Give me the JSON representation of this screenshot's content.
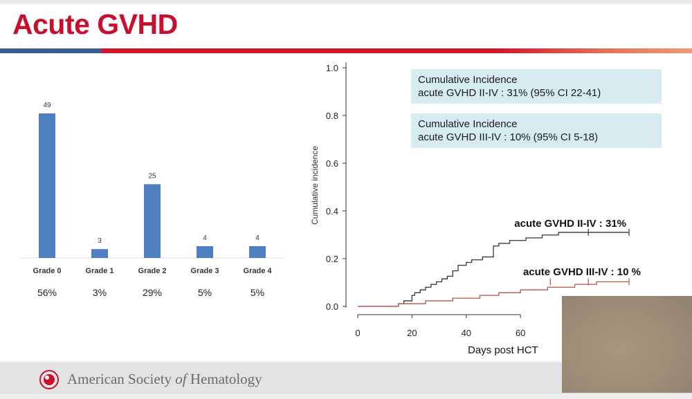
{
  "slide": {
    "title": "Acute GVHD"
  },
  "footer": {
    "org_prefix": "American Society ",
    "org_italic": "of",
    "org_suffix": " Hematology"
  },
  "annotations": {
    "box1": {
      "line1": "Cumulative Incidence",
      "line2": "acute GVHD II-IV : 31% (95% CI 22-41)"
    },
    "box2": {
      "line1": "Cumulative Incidence",
      "line2": "acute GVHD III-IV : 10% (95% CI 5-18)"
    }
  },
  "colors": {
    "title": "#c8102e",
    "bar": "#4f7fc0",
    "line_grade2_4": "#333333",
    "line_grade3_4": "#b5524a",
    "ci_box": "#d7ecf0"
  },
  "chart_data": [
    {
      "type": "bar",
      "categories": [
        "Grade 0",
        "Grade 1",
        "Grade 2",
        "Grade 3",
        "Grade 4"
      ],
      "values": [
        49,
        3,
        25,
        4,
        4
      ],
      "percent_labels": [
        "56%",
        "3%",
        "29%",
        "5%",
        "5%"
      ],
      "ylim": [
        0,
        49
      ]
    },
    {
      "type": "line",
      "xlabel": "Days post HCT",
      "ylabel": "Cumulative incidence",
      "xlim": [
        0,
        100
      ],
      "ylim": [
        0,
        1.0
      ],
      "x_ticks": [
        0,
        20,
        40,
        60
      ],
      "y_ticks": [
        "0.0",
        "0.2",
        "0.4",
        "0.6",
        "0.8",
        "1.0"
      ],
      "series": [
        {
          "name": "acute GVHD II-IV : 31%",
          "x": [
            0,
            14,
            15,
            17,
            20,
            21,
            23,
            25,
            27,
            29,
            31,
            33,
            35,
            37,
            40,
            42,
            46,
            50,
            52,
            56,
            62,
            68,
            74,
            80,
            88,
            100
          ],
          "y": [
            0,
            0,
            0.011,
            0.023,
            0.046,
            0.057,
            0.069,
            0.08,
            0.092,
            0.103,
            0.115,
            0.126,
            0.149,
            0.172,
            0.184,
            0.195,
            0.207,
            0.253,
            0.264,
            0.276,
            0.287,
            0.299,
            0.31,
            0.31,
            0.31,
            0.31
          ],
          "censor_x": [
            85,
            100
          ]
        },
        {
          "name": "acute GVHD III-IV : 10 %",
          "x": [
            0,
            14,
            15,
            25,
            35,
            45,
            52,
            60,
            70,
            80,
            88,
            100
          ],
          "y": [
            0,
            0,
            0.011,
            0.023,
            0.034,
            0.046,
            0.057,
            0.069,
            0.08,
            0.092,
            0.103,
            0.103
          ],
          "censor_x": [
            71,
            85,
            100
          ]
        }
      ]
    }
  ]
}
